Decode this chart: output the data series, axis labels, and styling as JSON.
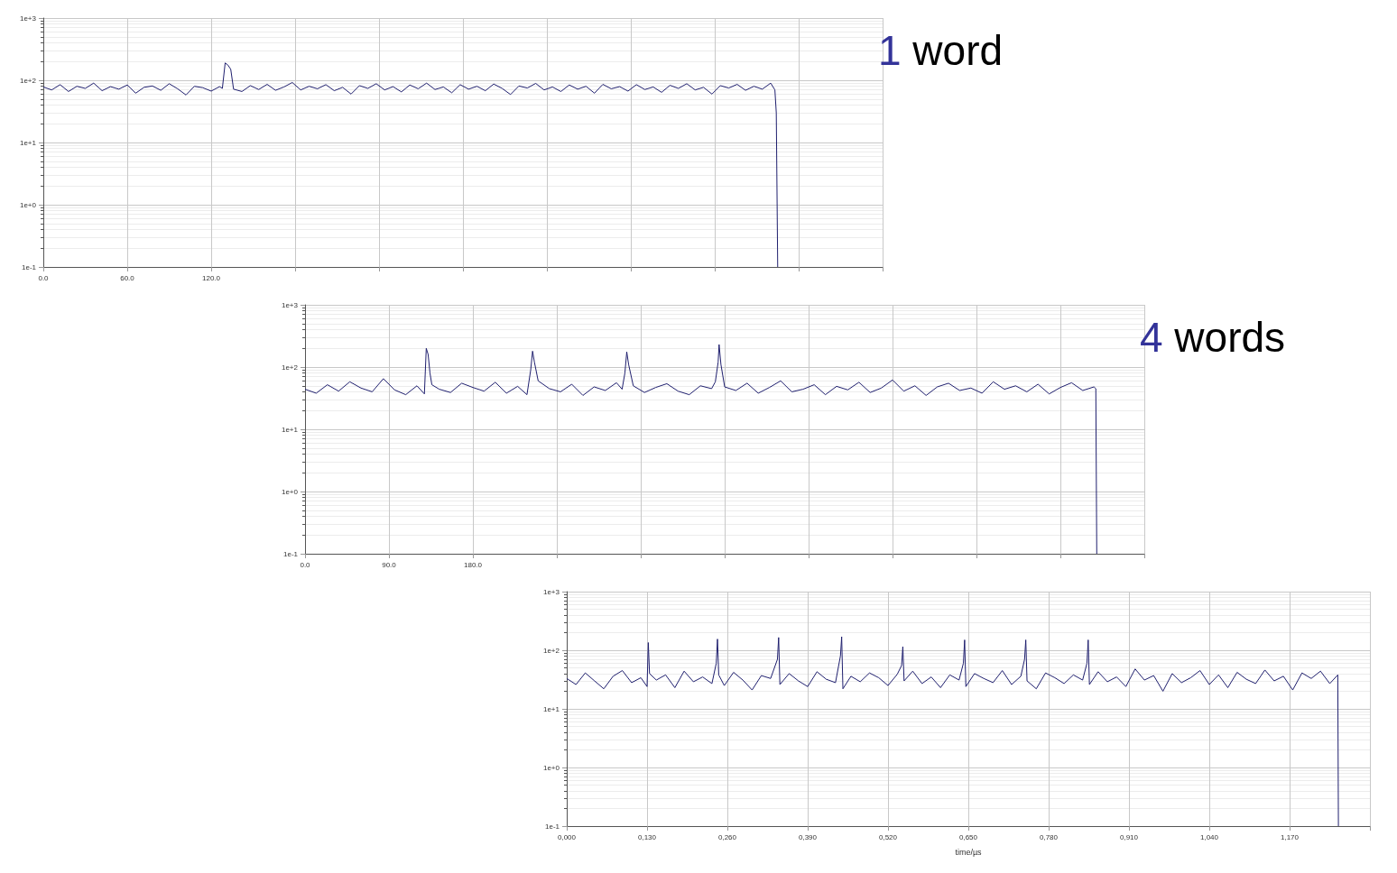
{
  "chart_data": [
    {
      "type": "line",
      "title": "1 word",
      "log": true,
      "grid": true,
      "xlim": [
        0,
        600
      ],
      "xticks": [
        {
          "value": 0,
          "label": "0.0"
        },
        {
          "value": 60,
          "label": "60.0"
        },
        {
          "value": 120,
          "label": "120.0"
        },
        {
          "value": 180,
          "label": null
        },
        {
          "value": 240,
          "label": null
        },
        {
          "value": 300,
          "label": null
        },
        {
          "value": 360,
          "label": null
        },
        {
          "value": 420,
          "label": null
        },
        {
          "value": 480,
          "label": null
        },
        {
          "value": 540,
          "label": null
        },
        {
          "value": 600,
          "label": null
        }
      ],
      "ylim": [
        0.1,
        1000
      ],
      "yticks": [
        {
          "value": 0.1,
          "label": "1e-1"
        },
        {
          "value": 1,
          "label": "1e+0"
        },
        {
          "value": 10,
          "label": "1e+1"
        },
        {
          "value": 100,
          "label": "1e+2"
        },
        {
          "value": 1000,
          "label": "1e+3"
        }
      ],
      "series": [
        {
          "color": "#1f1f6e",
          "x": [
            0,
            6,
            12,
            18,
            24,
            30,
            36,
            42,
            48,
            54,
            60,
            66,
            72,
            78,
            84,
            90,
            96,
            102,
            108,
            114,
            120,
            126,
            128,
            130,
            132,
            134,
            136,
            142,
            148,
            154,
            160,
            166,
            172,
            178,
            184,
            190,
            196,
            202,
            208,
            214,
            220,
            226,
            232,
            238,
            244,
            250,
            256,
            262,
            268,
            274,
            280,
            286,
            292,
            298,
            304,
            310,
            316,
            322,
            328,
            334,
            340,
            346,
            352,
            358,
            364,
            370,
            376,
            382,
            388,
            394,
            400,
            406,
            412,
            418,
            424,
            430,
            436,
            442,
            448,
            454,
            460,
            466,
            472,
            478,
            484,
            490,
            496,
            502,
            508,
            514,
            520,
            523,
            524,
            525
          ],
          "values": [
            78,
            70,
            85,
            66,
            80,
            74,
            90,
            68,
            79,
            72,
            84,
            62,
            77,
            81,
            69,
            88,
            73,
            58,
            80,
            76,
            67,
            79,
            74,
            190,
            175,
            150,
            72,
            66,
            82,
            71,
            86,
            69,
            78,
            92,
            70,
            80,
            73,
            85,
            68,
            77,
            60,
            82,
            74,
            88,
            70,
            79,
            65,
            84,
            73,
            90,
            71,
            78,
            63,
            85,
            72,
            80,
            68,
            87,
            74,
            59,
            81,
            75,
            89,
            70,
            78,
            66,
            84,
            72,
            80,
            62,
            86,
            73,
            79,
            67,
            85,
            71,
            78,
            64,
            83,
            74,
            88,
            70,
            77,
            60,
            82,
            75,
            86,
            69,
            80,
            72,
            90,
            70,
            30,
            0.1
          ]
        }
      ]
    },
    {
      "type": "line",
      "title": "4 words",
      "log": true,
      "grid": true,
      "xlim": [
        0,
        900
      ],
      "xticks": [
        {
          "value": 0,
          "label": "0.0"
        },
        {
          "value": 90,
          "label": "90.0"
        },
        {
          "value": 180,
          "label": "180.0"
        },
        {
          "value": 270,
          "label": null
        },
        {
          "value": 360,
          "label": null
        },
        {
          "value": 450,
          "label": null
        },
        {
          "value": 540,
          "label": null
        },
        {
          "value": 630,
          "label": null
        },
        {
          "value": 720,
          "label": null
        },
        {
          "value": 810,
          "label": null
        },
        {
          "value": 900,
          "label": null
        }
      ],
      "ylim": [
        0.1,
        1000
      ],
      "yticks": [
        {
          "value": 0.1,
          "label": "1e-1"
        },
        {
          "value": 1,
          "label": "1e+0"
        },
        {
          "value": 10,
          "label": "1e+1"
        },
        {
          "value": 100,
          "label": "1e+2"
        },
        {
          "value": 1000,
          "label": "1e+3"
        }
      ],
      "series": [
        {
          "color": "#1f1f6e",
          "x": [
            0,
            12,
            24,
            36,
            48,
            60,
            72,
            84,
            96,
            108,
            120,
            128,
            130,
            132,
            134,
            136,
            144,
            156,
            168,
            180,
            192,
            204,
            216,
            228,
            238,
            242,
            244,
            246,
            250,
            262,
            274,
            286,
            298,
            310,
            322,
            334,
            340,
            343,
            345,
            347,
            352,
            364,
            376,
            388,
            400,
            412,
            424,
            436,
            440,
            443,
            444,
            446,
            450,
            462,
            474,
            486,
            498,
            510,
            522,
            534,
            546,
            558,
            570,
            582,
            594,
            606,
            618,
            630,
            642,
            654,
            666,
            678,
            690,
            702,
            714,
            726,
            738,
            750,
            762,
            774,
            786,
            798,
            810,
            822,
            834,
            846,
            848,
            849
          ],
          "values": [
            44,
            38,
            52,
            41,
            58,
            46,
            40,
            65,
            43,
            36,
            50,
            37,
            200,
            160,
            80,
            52,
            44,
            39,
            55,
            47,
            41,
            57,
            38,
            49,
            36,
            90,
            180,
            120,
            60,
            45,
            40,
            53,
            35,
            48,
            42,
            56,
            44,
            80,
            175,
            110,
            50,
            39,
            47,
            54,
            41,
            36,
            50,
            45,
            58,
            120,
            230,
            110,
            48,
            42,
            55,
            38,
            47,
            60,
            40,
            44,
            52,
            36,
            49,
            43,
            57,
            39,
            46,
            62,
            41,
            50,
            35,
            48,
            55,
            42,
            46,
            38,
            58,
            44,
            50,
            40,
            53,
            37,
            47,
            56,
            42,
            48,
            45,
            0.1
          ]
        }
      ]
    },
    {
      "type": "line",
      "xlabel": "time/µs",
      "log": true,
      "grid": true,
      "xlim": [
        0,
        1.3
      ],
      "xticks": [
        {
          "value": 0,
          "label": "0,000"
        },
        {
          "value": 0.13,
          "label": "0,130"
        },
        {
          "value": 0.26,
          "label": "0,260"
        },
        {
          "value": 0.39,
          "label": "0,390"
        },
        {
          "value": 0.52,
          "label": "0,520"
        },
        {
          "value": 0.65,
          "label": "0,650"
        },
        {
          "value": 0.78,
          "label": "0,780"
        },
        {
          "value": 0.91,
          "label": "0,910"
        },
        {
          "value": 1.04,
          "label": "1,040"
        },
        {
          "value": 1.17,
          "label": "1,170"
        },
        {
          "value": 1.3,
          "label": null
        }
      ],
      "ylim": [
        0.1,
        1000
      ],
      "yticks": [
        {
          "value": 0.1,
          "label": "1e-1"
        },
        {
          "value": 1,
          "label": "1e+0"
        },
        {
          "value": 10,
          "label": "1e+1"
        },
        {
          "value": 100,
          "label": "1e+2"
        },
        {
          "value": 1000,
          "label": "1e+3"
        }
      ],
      "series": [
        {
          "color": "#1f1f6e",
          "x": [
            0,
            0.015,
            0.03,
            0.045,
            0.06,
            0.075,
            0.09,
            0.105,
            0.12,
            0.13,
            0.132,
            0.134,
            0.145,
            0.16,
            0.175,
            0.19,
            0.205,
            0.22,
            0.235,
            0.242,
            0.244,
            0.246,
            0.255,
            0.27,
            0.285,
            0.3,
            0.315,
            0.33,
            0.341,
            0.343,
            0.345,
            0.36,
            0.375,
            0.39,
            0.405,
            0.42,
            0.435,
            0.443,
            0.445,
            0.447,
            0.46,
            0.475,
            0.49,
            0.505,
            0.52,
            0.535,
            0.542,
            0.544,
            0.546,
            0.56,
            0.575,
            0.59,
            0.605,
            0.62,
            0.635,
            0.642,
            0.644,
            0.646,
            0.66,
            0.675,
            0.69,
            0.705,
            0.72,
            0.735,
            0.741,
            0.743,
            0.745,
            0.76,
            0.775,
            0.79,
            0.805,
            0.82,
            0.835,
            0.842,
            0.844,
            0.846,
            0.86,
            0.875,
            0.89,
            0.905,
            0.92,
            0.935,
            0.95,
            0.965,
            0.98,
            0.995,
            1.01,
            1.025,
            1.04,
            1.055,
            1.07,
            1.085,
            1.1,
            1.115,
            1.13,
            1.145,
            1.16,
            1.175,
            1.19,
            1.205,
            1.22,
            1.235,
            1.248,
            1.249
          ],
          "values": [
            33,
            26,
            41,
            30,
            22,
            36,
            45,
            28,
            34,
            24,
            135,
            40,
            31,
            38,
            23,
            44,
            29,
            35,
            27,
            60,
            155,
            38,
            25,
            42,
            31,
            21,
            37,
            33,
            70,
            165,
            26,
            40,
            30,
            24,
            43,
            32,
            28,
            80,
            170,
            22,
            36,
            29,
            41,
            34,
            25,
            39,
            55,
            115,
            30,
            44,
            27,
            35,
            23,
            38,
            31,
            60,
            150,
            24,
            40,
            33,
            28,
            45,
            26,
            36,
            70,
            150,
            30,
            22,
            41,
            34,
            27,
            38,
            31,
            60,
            150,
            26,
            43,
            29,
            35,
            24,
            48,
            31,
            37,
            20,
            40,
            28,
            34,
            45,
            26,
            38,
            23,
            42,
            32,
            27,
            46,
            30,
            36,
            21,
            41,
            33,
            44,
            27,
            38,
            0.1
          ]
        }
      ]
    }
  ]
}
